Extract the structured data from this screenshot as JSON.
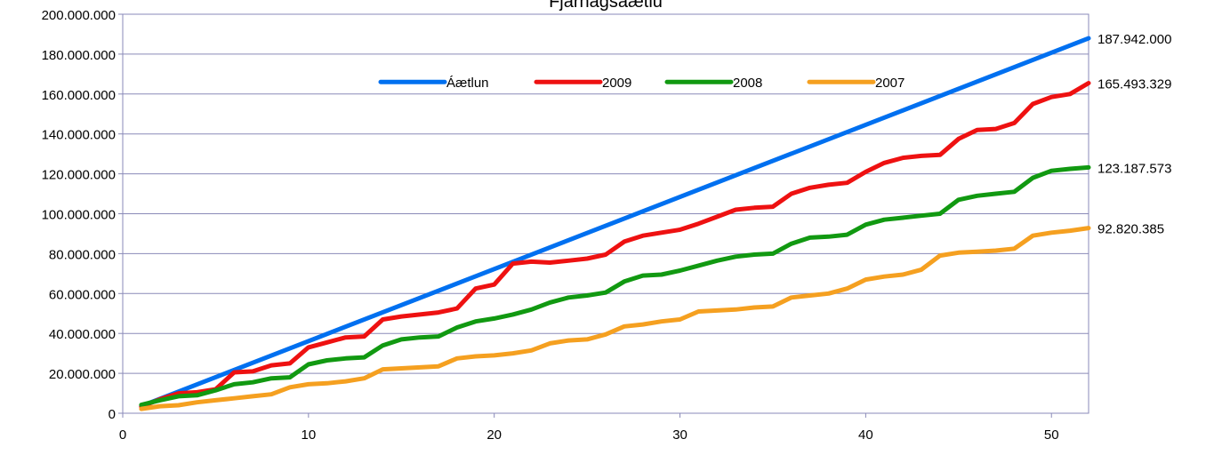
{
  "chart_data": {
    "type": "line",
    "title": "Fjárhagsáætlu",
    "xlabel": "",
    "ylabel": "",
    "xlim": [
      0,
      52
    ],
    "ylim": [
      0,
      200000000
    ],
    "x_ticks": [
      0,
      10,
      20,
      30,
      40,
      50
    ],
    "x_tick_labels": [
      "0",
      "10",
      "20",
      "30",
      "40",
      "50"
    ],
    "y_ticks": [
      0,
      20000000,
      40000000,
      60000000,
      80000000,
      100000000,
      120000000,
      140000000,
      160000000,
      180000000,
      200000000
    ],
    "y_tick_labels": [
      "0",
      "20.000.000",
      "40.000.000",
      "60.000.000",
      "80.000.000",
      "100.000.000",
      "120.000.000",
      "140.000.000",
      "160.000.000",
      "180.000.000",
      "200.000.000"
    ],
    "grid": "horizontal",
    "legend_position": "top-center",
    "series": [
      {
        "name": "Áætlun",
        "color": "#0070f0",
        "end_label": "187.942.000",
        "points": [
          [
            1,
            3614269
          ],
          [
            52,
            187942000
          ]
        ]
      },
      {
        "name": "2009",
        "color": "#ee1111",
        "end_label": "165.493.329",
        "points": [
          [
            1,
            3300000
          ],
          [
            2,
            7000000
          ],
          [
            3,
            10000000
          ],
          [
            4,
            10500000
          ],
          [
            5,
            12000000
          ],
          [
            6,
            20500000
          ],
          [
            7,
            21000000
          ],
          [
            8,
            24000000
          ],
          [
            9,
            25000000
          ],
          [
            10,
            33000000
          ],
          [
            11,
            35500000
          ],
          [
            12,
            38000000
          ],
          [
            13,
            38500000
          ],
          [
            14,
            47000000
          ],
          [
            15,
            48500000
          ],
          [
            16,
            49500000
          ],
          [
            17,
            50500000
          ],
          [
            18,
            52500000
          ],
          [
            19,
            62500000
          ],
          [
            20,
            64500000
          ],
          [
            21,
            75000000
          ],
          [
            22,
            76000000
          ],
          [
            23,
            75500000
          ],
          [
            24,
            76500000
          ],
          [
            25,
            77500000
          ],
          [
            26,
            79500000
          ],
          [
            27,
            86000000
          ],
          [
            28,
            89000000
          ],
          [
            29,
            90500000
          ],
          [
            30,
            92000000
          ],
          [
            31,
            95000000
          ],
          [
            32,
            98500000
          ],
          [
            33,
            102000000
          ],
          [
            34,
            103000000
          ],
          [
            35,
            103500000
          ],
          [
            36,
            110000000
          ],
          [
            37,
            113000000
          ],
          [
            38,
            114500000
          ],
          [
            39,
            115500000
          ],
          [
            40,
            121000000
          ],
          [
            41,
            125500000
          ],
          [
            42,
            128000000
          ],
          [
            43,
            129000000
          ],
          [
            44,
            129500000
          ],
          [
            45,
            137500000
          ],
          [
            46,
            142000000
          ],
          [
            47,
            142500000
          ],
          [
            48,
            145500000
          ],
          [
            49,
            155000000
          ],
          [
            50,
            158500000
          ],
          [
            51,
            160000000
          ],
          [
            52,
            165493329
          ]
        ]
      },
      {
        "name": "2008",
        "color": "#119911",
        "end_label": "123.187.573",
        "points": [
          [
            1,
            4200000
          ],
          [
            2,
            6500000
          ],
          [
            3,
            8500000
          ],
          [
            4,
            9000000
          ],
          [
            5,
            11500000
          ],
          [
            6,
            14500000
          ],
          [
            7,
            15500000
          ],
          [
            8,
            17500000
          ],
          [
            9,
            18000000
          ],
          [
            10,
            24500000
          ],
          [
            11,
            26500000
          ],
          [
            12,
            27500000
          ],
          [
            13,
            28000000
          ],
          [
            14,
            34000000
          ],
          [
            15,
            37000000
          ],
          [
            16,
            38000000
          ],
          [
            17,
            38500000
          ],
          [
            18,
            43000000
          ],
          [
            19,
            46000000
          ],
          [
            20,
            47500000
          ],
          [
            21,
            49500000
          ],
          [
            22,
            52000000
          ],
          [
            23,
            55500000
          ],
          [
            24,
            58000000
          ],
          [
            25,
            59000000
          ],
          [
            26,
            60500000
          ],
          [
            27,
            66000000
          ],
          [
            28,
            69000000
          ],
          [
            29,
            69500000
          ],
          [
            30,
            71500000
          ],
          [
            31,
            74000000
          ],
          [
            32,
            76500000
          ],
          [
            33,
            78500000
          ],
          [
            34,
            79500000
          ],
          [
            35,
            80000000
          ],
          [
            36,
            85000000
          ],
          [
            37,
            88000000
          ],
          [
            38,
            88500000
          ],
          [
            39,
            89500000
          ],
          [
            40,
            94500000
          ],
          [
            41,
            97000000
          ],
          [
            42,
            98000000
          ],
          [
            43,
            99000000
          ],
          [
            44,
            100000000
          ],
          [
            45,
            107000000
          ],
          [
            46,
            109000000
          ],
          [
            47,
            110000000
          ],
          [
            48,
            111000000
          ],
          [
            49,
            118000000
          ],
          [
            50,
            121500000
          ],
          [
            51,
            122500000
          ],
          [
            52,
            123187573
          ]
        ]
      },
      {
        "name": "2007",
        "color": "#f5a020",
        "end_label": "92.820.385",
        "points": [
          [
            1,
            2200000
          ],
          [
            2,
            3500000
          ],
          [
            3,
            4000000
          ],
          [
            4,
            5500000
          ],
          [
            5,
            6500000
          ],
          [
            6,
            7500000
          ],
          [
            7,
            8500000
          ],
          [
            8,
            9500000
          ],
          [
            9,
            13000000
          ],
          [
            10,
            14500000
          ],
          [
            11,
            15000000
          ],
          [
            12,
            16000000
          ],
          [
            13,
            17500000
          ],
          [
            14,
            22000000
          ],
          [
            15,
            22500000
          ],
          [
            16,
            23000000
          ],
          [
            17,
            23500000
          ],
          [
            18,
            27500000
          ],
          [
            19,
            28500000
          ],
          [
            20,
            29000000
          ],
          [
            21,
            30000000
          ],
          [
            22,
            31500000
          ],
          [
            23,
            35000000
          ],
          [
            24,
            36500000
          ],
          [
            25,
            37000000
          ],
          [
            26,
            39500000
          ],
          [
            27,
            43500000
          ],
          [
            28,
            44500000
          ],
          [
            29,
            46000000
          ],
          [
            30,
            47000000
          ],
          [
            31,
            51000000
          ],
          [
            32,
            51500000
          ],
          [
            33,
            52000000
          ],
          [
            34,
            53000000
          ],
          [
            35,
            53500000
          ],
          [
            36,
            58000000
          ],
          [
            37,
            59000000
          ],
          [
            38,
            60000000
          ],
          [
            39,
            62500000
          ],
          [
            40,
            67000000
          ],
          [
            41,
            68500000
          ],
          [
            42,
            69500000
          ],
          [
            43,
            72000000
          ],
          [
            44,
            79000000
          ],
          [
            45,
            80500000
          ],
          [
            46,
            81000000
          ],
          [
            47,
            81500000
          ],
          [
            48,
            82500000
          ],
          [
            49,
            89000000
          ],
          [
            50,
            90500000
          ],
          [
            51,
            91500000
          ],
          [
            52,
            92820385
          ]
        ]
      }
    ]
  }
}
